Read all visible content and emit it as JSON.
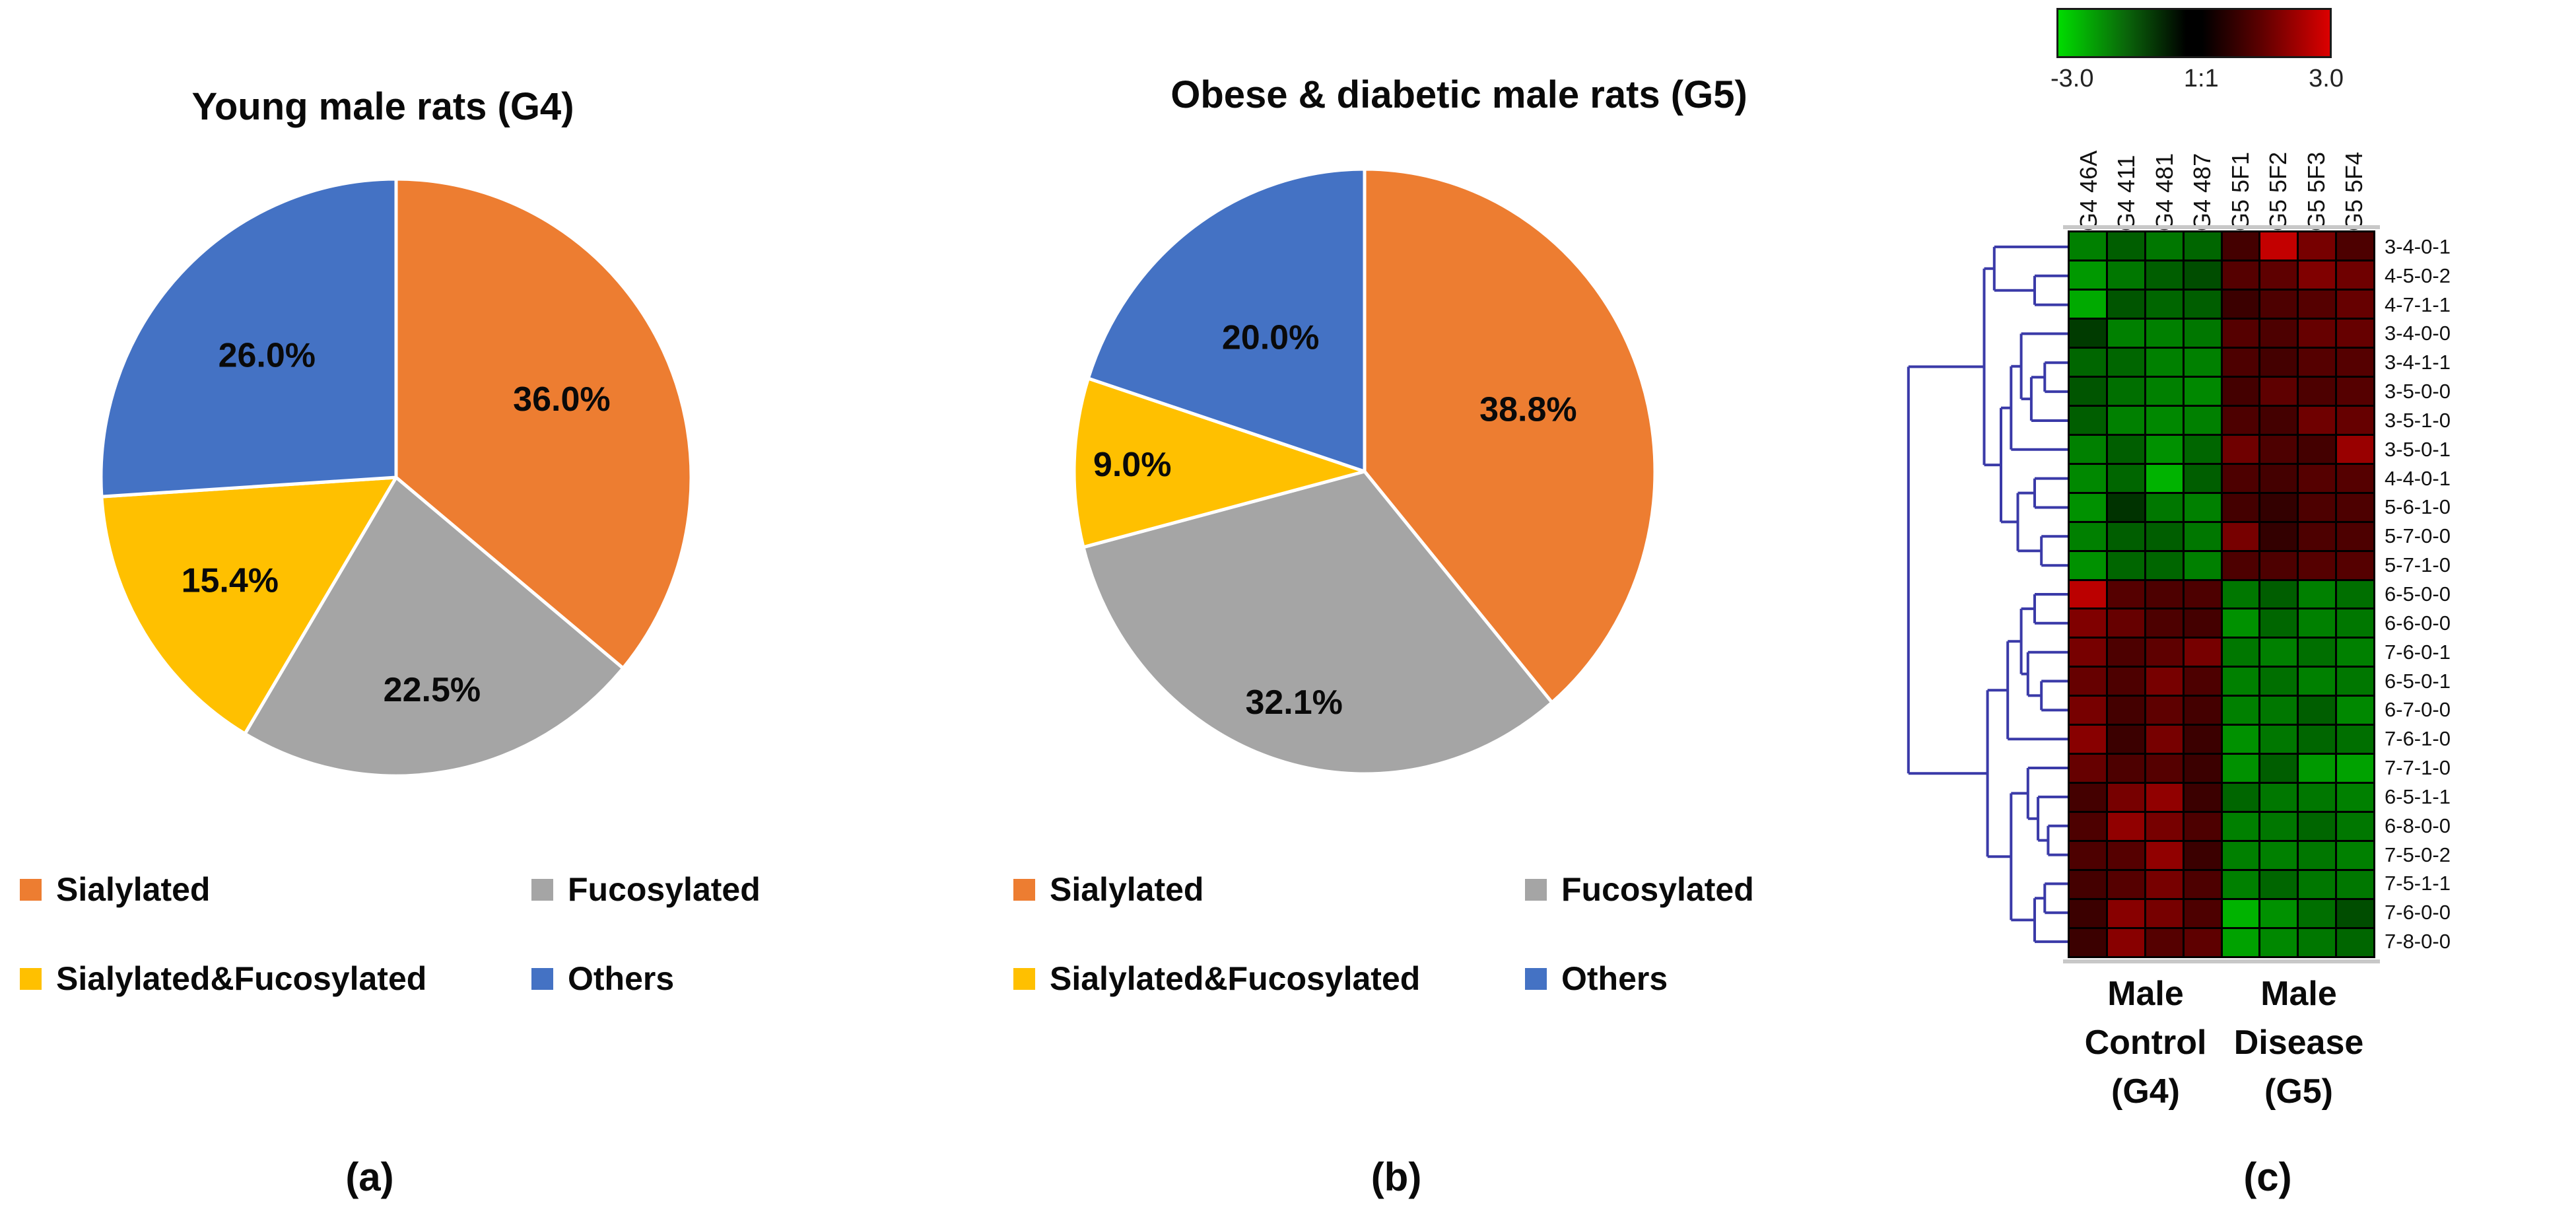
{
  "figure": {
    "background": "#ffffff",
    "captions": {
      "a": "(a)",
      "b": "(b)",
      "c": "(c)"
    }
  },
  "colors": {
    "sialylated": "#ED7D31",
    "fucosylated": "#A5A5A5",
    "sialylated_fucosylated": "#FFC000",
    "others": "#4472C4",
    "dendrogram": "#3A3AA8",
    "heatmap_up": "#FF0000",
    "heatmap_down": "#00FF00",
    "heatmap_mid": "#000000"
  },
  "chart_data": [
    {
      "id": "pie_a",
      "type": "pie",
      "panel": "a",
      "title": "Young male rats (G4)",
      "categories": [
        "Sialylated",
        "Fucosylated",
        "Sialylated&Fucosylated",
        "Others"
      ],
      "values": [
        36.0,
        22.5,
        15.4,
        26.0
      ],
      "labels": [
        "36.0%",
        "22.5%",
        "15.4%",
        "26.0%"
      ],
      "colors": [
        "#ED7D31",
        "#A5A5A5",
        "#FFC000",
        "#4472C4"
      ],
      "start_angle_deg": 0,
      "direction": "clockwise",
      "legend_position": "bottom",
      "legend": [
        "Sialylated",
        "Fucosylated",
        "Sialylated&Fucosylated",
        "Others"
      ]
    },
    {
      "id": "pie_b",
      "type": "pie",
      "panel": "b",
      "title": "Obese & diabetic male rats (G5)",
      "categories": [
        "Sialylated",
        "Fucosylated",
        "Sialylated&Fucosylated",
        "Others"
      ],
      "values": [
        38.8,
        32.1,
        9.0,
        20.0
      ],
      "labels": [
        "38.8%",
        "32.1%",
        "9.0%",
        "20.0%"
      ],
      "colors": [
        "#ED7D31",
        "#A5A5A5",
        "#FFC000",
        "#4472C4"
      ],
      "start_angle_deg": 0,
      "direction": "clockwise",
      "legend_position": "bottom",
      "legend": [
        "Sialylated",
        "Fucosylated",
        "Sialylated&Fucosylated",
        "Others"
      ]
    },
    {
      "id": "heatmap_c",
      "type": "heatmap",
      "panel": "c",
      "colorbar": {
        "min": -3.0,
        "max": 3.0,
        "min_label": "-3.0",
        "mid_label": "1:1",
        "max_label": "3.0",
        "gradient": [
          "#00DC00",
          "#000000",
          "#DC0000"
        ]
      },
      "columns": [
        "G4 46A",
        "G4 411",
        "G4 481",
        "G4 487",
        "G5 5F1",
        "G5 5F2",
        "G5 5F3",
        "G5 5F4"
      ],
      "rows": [
        "3-4-0-1",
        "4-5-0-2",
        "4-7-1-1",
        "3-4-0-0",
        "3-4-1-1",
        "3-5-0-0",
        "3-5-1-0",
        "3-5-0-1",
        "4-4-0-1",
        "5-6-1-0",
        "5-7-0-0",
        "5-7-1-0",
        "6-5-0-0",
        "6-6-0-0",
        "7-6-0-1",
        "6-5-0-1",
        "6-7-0-0",
        "7-6-1-0",
        "7-7-1-0",
        "6-5-1-1",
        "6-8-0-0",
        "7-5-0-2",
        "7-5-1-1",
        "7-6-0-0",
        "7-8-0-0"
      ],
      "value_range": [
        -3,
        3
      ],
      "values": [
        [
          -1.5,
          -1.1,
          -1.4,
          -1.2,
          0.8,
          2.3,
          1.4,
          0.9
        ],
        [
          -1.8,
          -1.4,
          -1.1,
          -0.9,
          1.0,
          1.1,
          1.5,
          1.3
        ],
        [
          -2.0,
          -1.0,
          -1.2,
          -1.1,
          0.7,
          0.9,
          1.0,
          1.2
        ],
        [
          -0.7,
          -1.5,
          -1.5,
          -1.4,
          1.0,
          0.9,
          1.2,
          1.2
        ],
        [
          -1.2,
          -1.2,
          -1.5,
          -1.5,
          0.9,
          0.8,
          1.0,
          1.0
        ],
        [
          -1.0,
          -1.3,
          -1.5,
          -1.6,
          0.8,
          1.1,
          0.9,
          1.0
        ],
        [
          -1.1,
          -1.5,
          -1.6,
          -1.5,
          0.9,
          0.8,
          1.3,
          1.2
        ],
        [
          -1.5,
          -1.1,
          -1.7,
          -1.2,
          1.3,
          0.9,
          0.8,
          1.8
        ],
        [
          -1.6,
          -1.2,
          -2.1,
          -1.1,
          0.9,
          0.8,
          1.0,
          1.0
        ],
        [
          -1.7,
          -0.6,
          -1.4,
          -1.5,
          0.8,
          0.6,
          0.9,
          0.9
        ],
        [
          -1.5,
          -1.1,
          -1.1,
          -1.4,
          1.4,
          0.6,
          0.9,
          0.9
        ],
        [
          -1.7,
          -1.2,
          -1.2,
          -1.5,
          0.9,
          0.9,
          1.0,
          1.0
        ],
        [
          2.2,
          1.0,
          0.9,
          0.9,
          -1.4,
          -1.1,
          -1.5,
          -1.3
        ],
        [
          1.5,
          1.2,
          0.9,
          0.8,
          -1.7,
          -1.2,
          -1.5,
          -1.4
        ],
        [
          1.4,
          0.9,
          1.1,
          1.4,
          -1.4,
          -1.5,
          -1.3,
          -1.5
        ],
        [
          1.2,
          0.9,
          1.4,
          0.9,
          -1.5,
          -1.3,
          -1.5,
          -1.4
        ],
        [
          1.4,
          0.8,
          1.1,
          0.8,
          -1.5,
          -1.4,
          -1.1,
          -1.6
        ],
        [
          1.6,
          0.7,
          1.4,
          0.7,
          -1.7,
          -1.4,
          -1.2,
          -1.3
        ],
        [
          1.2,
          0.9,
          1.0,
          0.7,
          -1.7,
          -1.1,
          -1.8,
          -1.9
        ],
        [
          0.8,
          1.4,
          1.7,
          0.7,
          -1.2,
          -1.4,
          -1.4,
          -1.5
        ],
        [
          0.9,
          1.7,
          1.4,
          0.9,
          -1.5,
          -1.4,
          -1.2,
          -1.4
        ],
        [
          0.9,
          1.0,
          1.7,
          0.7,
          -1.5,
          -1.5,
          -1.4,
          -1.5
        ],
        [
          0.8,
          1.0,
          1.4,
          0.9,
          -1.5,
          -1.2,
          -1.4,
          -1.4
        ],
        [
          0.7,
          1.6,
          1.4,
          0.9,
          -2.1,
          -1.7,
          -1.3,
          -0.9
        ],
        [
          0.7,
          1.6,
          1.0,
          1.1,
          -1.9,
          -1.6,
          -1.4,
          -1.2
        ]
      ],
      "group_labels": [
        "Male\nControl\n(G4)",
        "Male\nDisease\n(G5)"
      ],
      "dendrogram": {
        "d": 0.05,
        "c": [
          {
            "d": 0.5,
            "c": [
              {
                "d": 0.56,
                "c": [
                  0,
                  {
                    "d": 0.8,
                    "c": [
                      1,
                      2
                    ]
                  }
                ]
              },
              {
                "d": 0.6,
                "c": [
                  {
                    "d": 0.66,
                    "c": [
                      {
                        "d": 0.72,
                        "c": [
                          3,
                          {
                            "d": 0.78,
                            "c": [
                              {
                                "d": 0.86,
                                "c": [
                                  4,
                                  5
                                ]
                              },
                              6
                            ]
                          }
                        ]
                      },
                      7
                    ]
                  },
                  {
                    "d": 0.7,
                    "c": [
                      {
                        "d": 0.8,
                        "c": [
                          8,
                          9
                        ]
                      },
                      {
                        "d": 0.84,
                        "c": [
                          10,
                          11
                        ]
                      }
                    ]
                  }
                ]
              }
            ]
          },
          {
            "d": 0.52,
            "c": [
              {
                "d": 0.64,
                "c": [
                  {
                    "d": 0.72,
                    "c": [
                      {
                        "d": 0.8,
                        "c": [
                          12,
                          13
                        ]
                      },
                      {
                        "d": 0.76,
                        "c": [
                          14,
                          {
                            "d": 0.84,
                            "c": [
                              15,
                              16
                            ]
                          }
                        ]
                      }
                    ]
                  },
                  17
                ]
              },
              {
                "d": 0.66,
                "c": [
                  {
                    "d": 0.76,
                    "c": [
                      18,
                      {
                        "d": 0.82,
                        "c": [
                          19,
                          {
                            "d": 0.88,
                            "c": [
                              20,
                              21
                            ]
                          }
                        ]
                      }
                    ]
                  },
                  {
                    "d": 0.8,
                    "c": [
                      {
                        "d": 0.86,
                        "c": [
                          22,
                          23
                        ]
                      },
                      24
                    ]
                  }
                ]
              }
            ]
          }
        ]
      }
    }
  ]
}
